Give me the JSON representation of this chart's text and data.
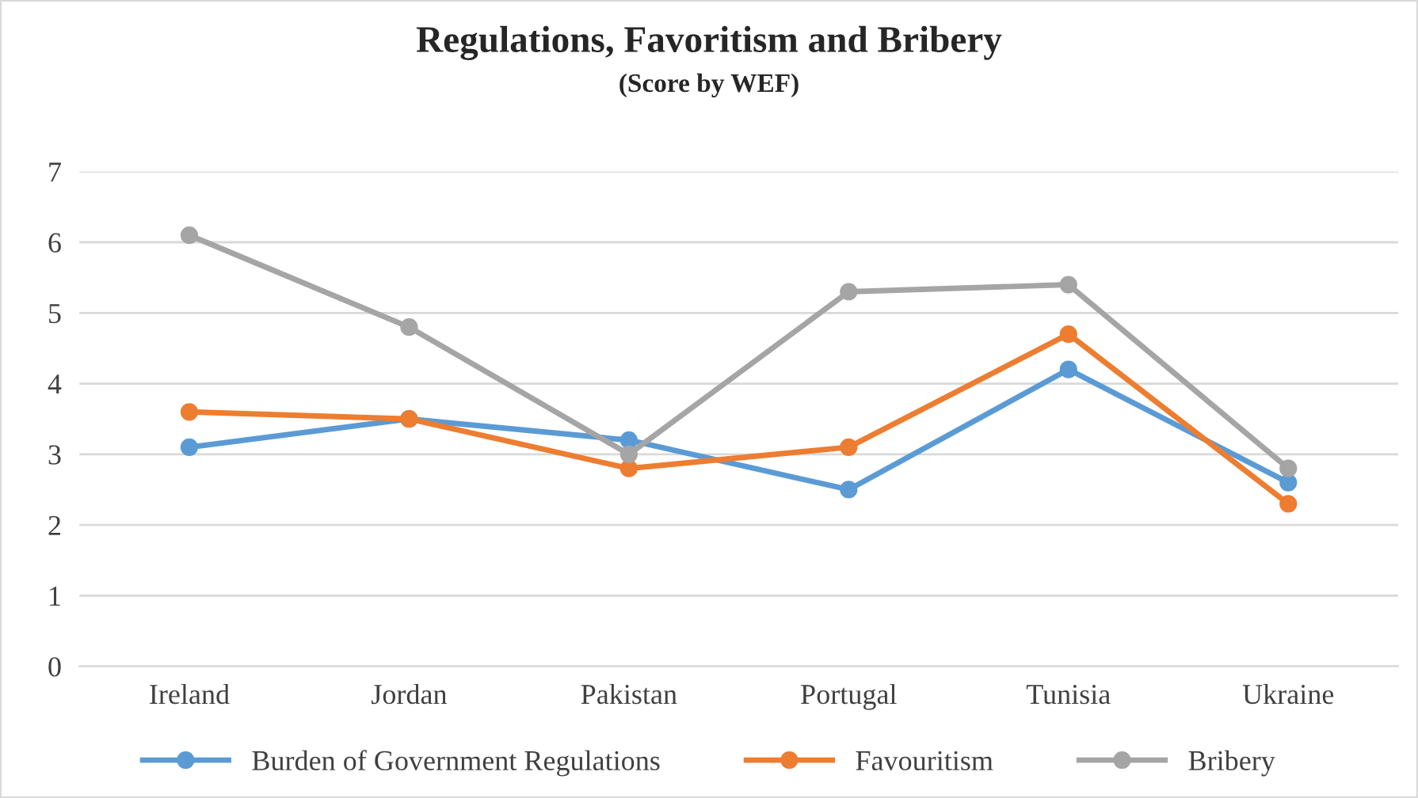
{
  "chart_data": {
    "type": "line",
    "title": "Regulations, Favoritism and Bribery",
    "subtitle": "(Score by WEF)",
    "categories": [
      "Ireland",
      "Jordan",
      "Pakistan",
      "Portugal",
      "Tunisia",
      "Ukraine"
    ],
    "series": [
      {
        "name": "Burden of Government Regulations",
        "color": "#5b9bd5",
        "values": [
          3.1,
          3.5,
          3.2,
          2.5,
          4.2,
          2.6
        ]
      },
      {
        "name": "Favouritism",
        "color": "#ed7d31",
        "values": [
          3.6,
          3.5,
          2.8,
          3.1,
          4.7,
          2.3
        ]
      },
      {
        "name": "Bribery",
        "color": "#a5a5a5",
        "values": [
          6.1,
          4.8,
          3.0,
          5.3,
          5.4,
          2.8
        ]
      }
    ],
    "ylim": [
      0,
      7
    ],
    "yticks": [
      0,
      1,
      2,
      3,
      4,
      5,
      6,
      7
    ],
    "grid": "y",
    "legend": "bottom",
    "marker": "circle",
    "line_style": "solid"
  }
}
